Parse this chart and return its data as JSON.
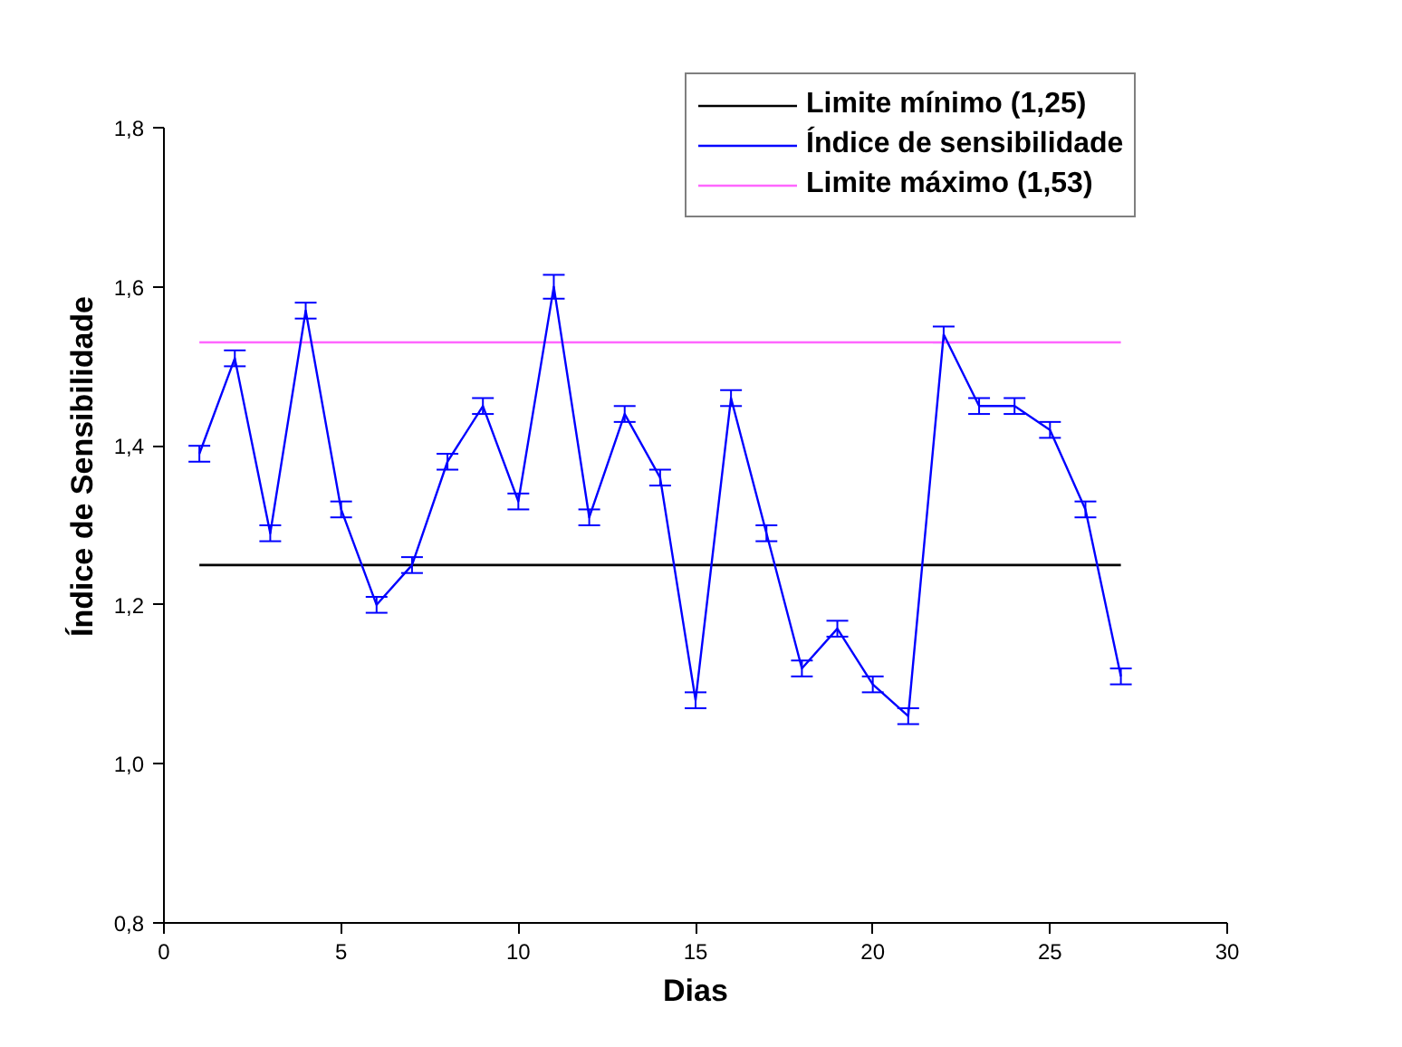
{
  "chart_data": {
    "type": "line",
    "xlabel": "Dias",
    "ylabel": "Índice de Sensibilidade",
    "x": [
      1,
      2,
      3,
      4,
      5,
      6,
      7,
      8,
      9,
      10,
      11,
      12,
      13,
      14,
      15,
      16,
      17,
      18,
      19,
      20,
      21,
      22,
      23,
      24,
      25,
      26,
      27
    ],
    "series": [
      {
        "name": "Índice de sensibilidade",
        "color": "#0000ff",
        "values": [
          1.39,
          1.51,
          1.29,
          1.57,
          1.32,
          1.2,
          1.25,
          1.38,
          1.45,
          1.33,
          1.6,
          1.31,
          1.44,
          1.36,
          1.08,
          1.46,
          1.29,
          1.12,
          1.17,
          1.1,
          1.06,
          1.54,
          1.45,
          1.45,
          1.42,
          1.32,
          1.11
        ],
        "errors": [
          0.01,
          0.01,
          0.01,
          0.01,
          0.01,
          0.01,
          0.01,
          0.01,
          0.01,
          0.01,
          0.015,
          0.01,
          0.01,
          0.01,
          0.01,
          0.01,
          0.01,
          0.01,
          0.01,
          0.01,
          0.01,
          0.01,
          0.01,
          0.01,
          0.01,
          0.01,
          0.01
        ]
      }
    ],
    "ref_lines": [
      {
        "axis": "y",
        "value": 1.25,
        "label": "Limite mínimo (1,25)",
        "color": "#000000"
      },
      {
        "axis": "y",
        "value": 1.53,
        "label": "Limite máximo (1,53)",
        "color": "#ff66ff"
      }
    ],
    "xlim": [
      0,
      30
    ],
    "xticks": [
      0,
      5,
      10,
      15,
      20,
      25,
      30
    ],
    "ylim": [
      0.8,
      1.8
    ],
    "yticks": [
      {
        "value": 0.8,
        "label": "0,8"
      },
      {
        "value": 1.0,
        "label": "1,0"
      },
      {
        "value": 1.2,
        "label": "1,2"
      },
      {
        "value": 1.4,
        "label": "1,4"
      },
      {
        "value": 1.6,
        "label": "1,6"
      },
      {
        "value": 1.8,
        "label": "1,8"
      }
    ],
    "grid": false,
    "legend": "top right",
    "marker": "none",
    "line_style": "solid"
  }
}
